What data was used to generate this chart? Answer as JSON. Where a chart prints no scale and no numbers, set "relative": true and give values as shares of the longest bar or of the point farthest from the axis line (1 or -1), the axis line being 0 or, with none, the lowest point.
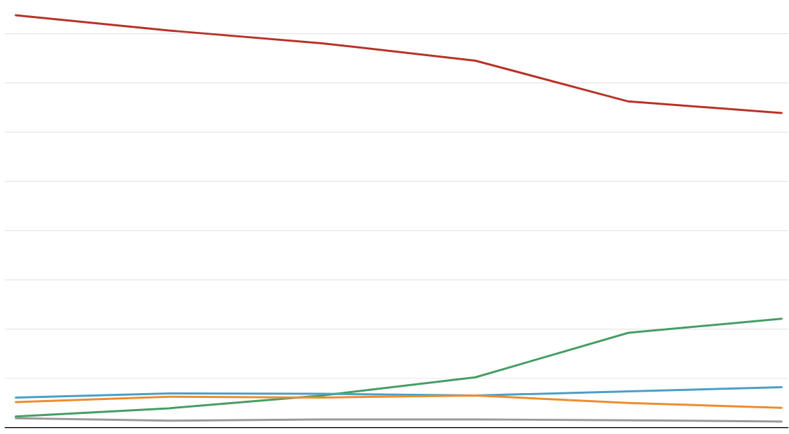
{
  "chart_data": {
    "type": "line",
    "relative": true,
    "grid": "y",
    "marker": "none",
    "line_style": "solid",
    "categories": [
      null,
      null,
      null,
      null,
      null,
      null
    ],
    "series": [
      {
        "color": "#b83227",
        "values": [
          1,
          0.963,
          0.932,
          0.89,
          0.791,
          0.763
        ]
      },
      {
        "color": "#459e63",
        "values": [
          0.027,
          0.047,
          0.078,
          0.122,
          0.23,
          0.264
        ]
      },
      {
        "color": "#4a9fc8",
        "values": [
          0.073,
          0.083,
          0.082,
          0.078,
          0.088,
          0.098
        ]
      },
      {
        "color": "#ee8c2e",
        "values": [
          0.062,
          0.075,
          0.073,
          0.078,
          0.06,
          0.048
        ]
      },
      {
        "color": "#999999",
        "values": [
          0.023,
          0.017,
          0.02,
          0.02,
          0.018,
          0.015
        ]
      }
    ]
  }
}
